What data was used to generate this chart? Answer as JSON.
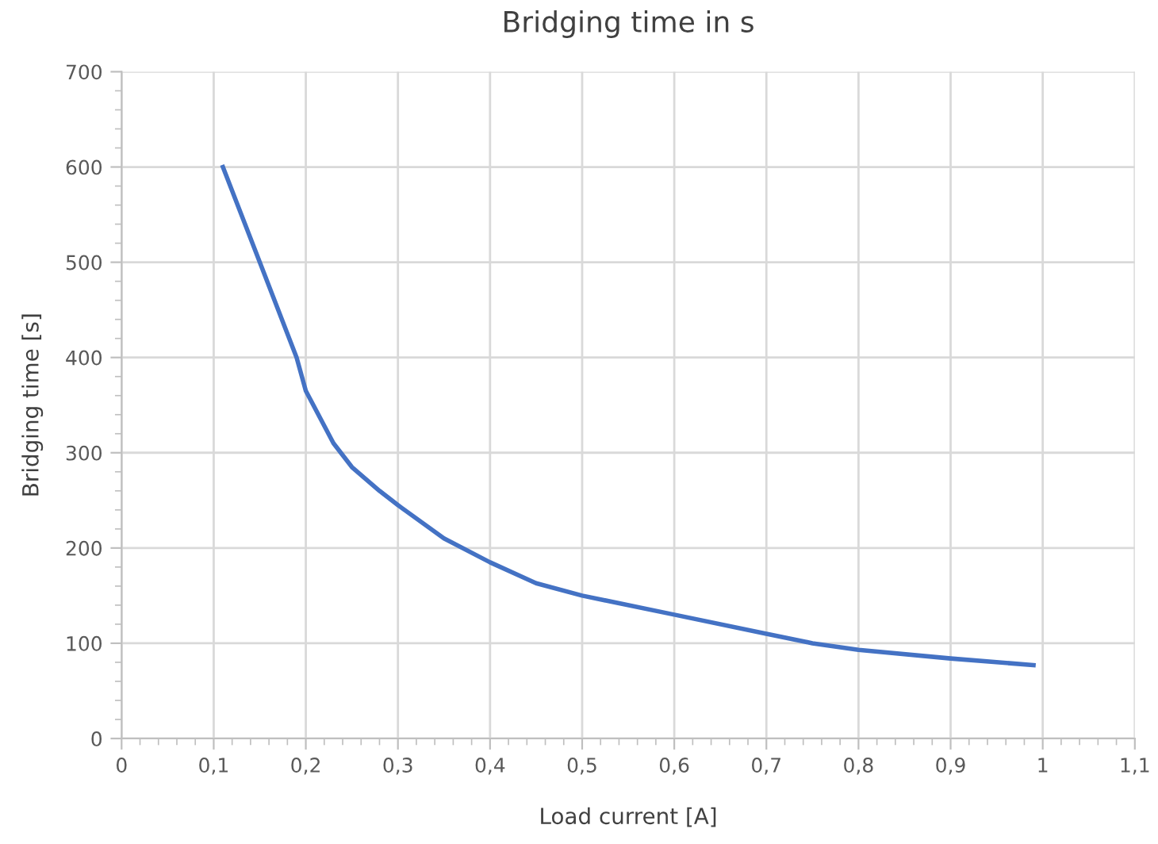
{
  "chart_data": {
    "type": "line",
    "title": "Bridging time in s",
    "xlabel": "Load current [A]",
    "ylabel": "Bridging time [s]",
    "series": [
      {
        "color": "#4472c4",
        "x": [
          0.11,
          0.15,
          0.19,
          0.2,
          0.23,
          0.25,
          0.28,
          0.3,
          0.35,
          0.4,
          0.45,
          0.5,
          0.6,
          0.7,
          0.75,
          0.8,
          0.9,
          0.99
        ],
        "values": [
          600,
          500,
          400,
          365,
          310,
          285,
          260,
          245,
          210,
          185,
          163,
          150,
          130,
          110,
          100,
          93,
          84,
          77
        ]
      }
    ],
    "xlim": [
      0,
      1.1
    ],
    "xticks": [
      0,
      {
        "value": 0.1,
        "label": "0,1"
      },
      {
        "value": 0.2,
        "label": "0,2"
      },
      {
        "value": 0.3,
        "label": "0,3"
      },
      {
        "value": 0.4,
        "label": "0,4"
      },
      {
        "value": 0.5,
        "label": "0,5"
      },
      {
        "value": 0.6,
        "label": "0,6"
      },
      {
        "value": 0.7,
        "label": "0,7"
      },
      {
        "value": 0.8,
        "label": "0,8"
      },
      {
        "value": 0.9,
        "label": "0,9"
      },
      1,
      {
        "value": 1.1,
        "label": "1,1"
      }
    ],
    "ylim": [
      0,
      700
    ],
    "yticks": [
      0,
      100,
      200,
      300,
      400,
      500,
      600,
      700
    ],
    "grid": true,
    "marker": "none",
    "line_style": "solid"
  }
}
